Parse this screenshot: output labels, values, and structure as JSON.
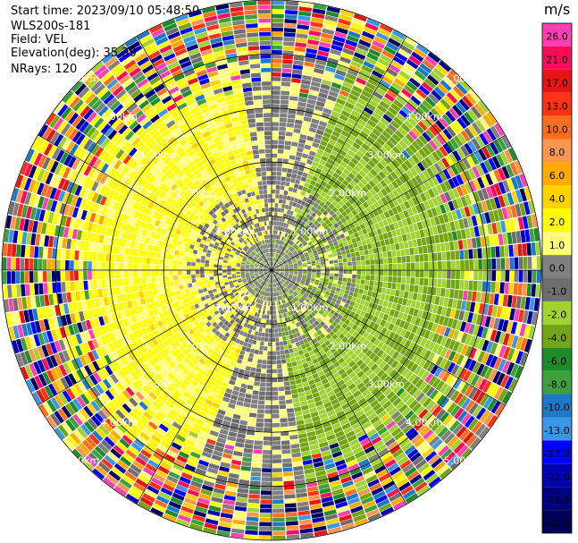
{
  "header": {
    "start_time": "Start time: 2023/09/10 05:48:50",
    "instrument": "WLS200s-181",
    "field": "Field: VEL",
    "elevation": "Elevation(deg): 35.30",
    "nrays": "NRays: 120"
  },
  "chart_data": {
    "type": "heatmap",
    "projection": "polar-ppi",
    "n_rays": 120,
    "n_gates": 60,
    "max_range_km": 5.0,
    "ring_labels": [
      "1.00km",
      "2.00km",
      "3.00km",
      "4.00km",
      "5.00km"
    ],
    "ring_ranges_km": [
      1,
      2,
      3,
      4,
      5
    ],
    "spokes_deg": [
      0,
      30,
      60,
      90,
      120,
      150,
      180,
      210,
      240,
      270,
      300,
      330
    ],
    "colorbar": {
      "unit": "m/s",
      "ticks": [
        "26.0",
        "21.0",
        "17.0",
        "13.0",
        "10.0",
        "8.0",
        "6.0",
        "4.0",
        "2.0",
        "1.0",
        "0.0",
        "-1.0",
        "-2.0",
        "-4.0",
        "-6.0",
        "-8.0",
        "-10.0",
        "-13.0",
        "-17.0",
        "-21.0",
        "-26.0",
        "-30.0"
      ],
      "colors": [
        "#ff3fb4",
        "#ff0a5a",
        "#e61414",
        "#ff3214",
        "#ff6e1e",
        "#ff9650",
        "#ffaa00",
        "#ffd200",
        "#ffff00",
        "#ffff78",
        "#808080",
        "#6e6e6e",
        "#a0d232",
        "#73a514",
        "#1e8c28",
        "#3ca03c",
        "#1e78c8",
        "#3c96e6",
        "#0000ff",
        "#0000b4",
        "#000082",
        "#00005a"
      ]
    },
    "velocity_field": {
      "inner_gray_km": 1.6,
      "sectors": [
        {
          "name": "approaching",
          "from_deg": 20,
          "to_deg": 170,
          "value_ms": -3.0
        },
        {
          "name": "receding",
          "from_deg": 200,
          "to_deg": 350,
          "value_ms": 2.0
        },
        {
          "name": "gray",
          "from_deg": 170,
          "to_deg": 200,
          "value_ms": 0.0
        },
        {
          "name": "gray",
          "from_deg": 350,
          "to_deg": 20,
          "value_ms": 0.0
        }
      ],
      "noise_onset_km": 3.2
    }
  }
}
